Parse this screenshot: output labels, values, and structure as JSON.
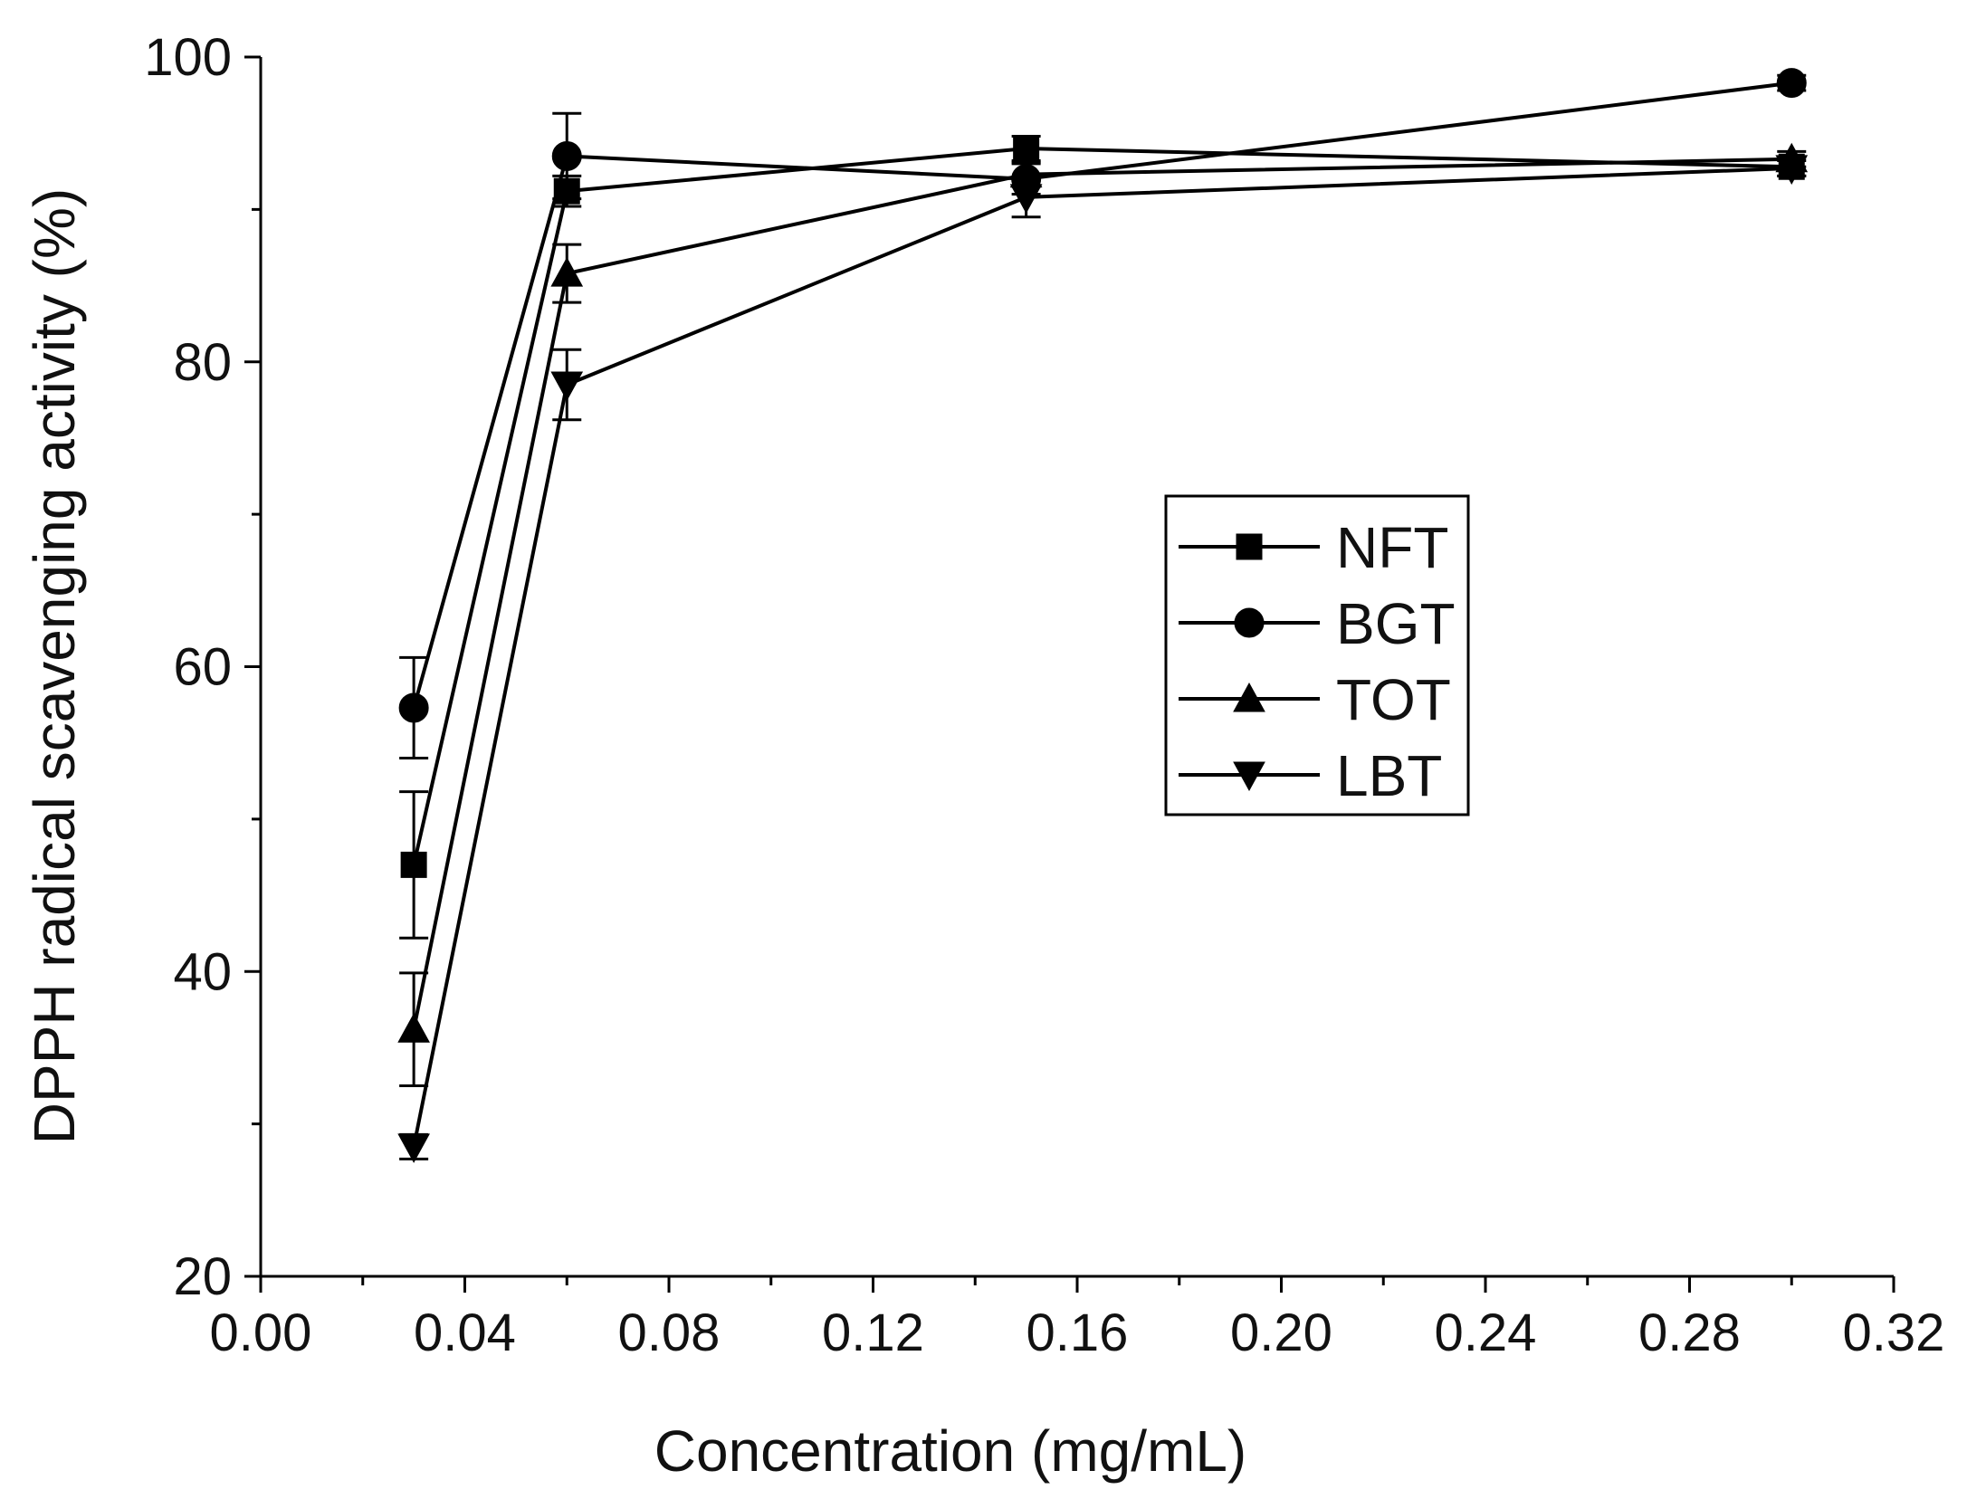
{
  "chart_data": {
    "type": "line",
    "title": "",
    "xlabel": "Concentration (mg/mL)",
    "ylabel": "DPPH radical scavenging activity (%)",
    "xlim": [
      0.0,
      0.32
    ],
    "ylim": [
      20,
      100
    ],
    "x_major_ticks": [
      0.0,
      0.04,
      0.08,
      0.12,
      0.16,
      0.2,
      0.24,
      0.28,
      0.32
    ],
    "x_tick_labels": [
      "0.00",
      "0.04",
      "0.08",
      "0.12",
      "0.16",
      "0.20",
      "0.24",
      "0.28",
      "0.32"
    ],
    "x_minor_ticks": [
      0.02,
      0.06,
      0.1,
      0.14,
      0.18,
      0.22,
      0.26,
      0.3
    ],
    "y_major_ticks": [
      20,
      40,
      60,
      80,
      100
    ],
    "y_tick_labels": [
      "20",
      "40",
      "60",
      "80",
      "100"
    ],
    "y_minor_ticks": [
      30,
      50,
      70,
      90
    ],
    "grid": false,
    "legend_position": "center-right",
    "x": [
      0.03,
      0.06,
      0.15,
      0.3
    ],
    "series": [
      {
        "name": "NFT",
        "marker": "square",
        "values": [
          47.0,
          91.2,
          94.0,
          92.8
        ],
        "errors": [
          4.8,
          1.0,
          0.8,
          0.6
        ]
      },
      {
        "name": "BGT",
        "marker": "circle",
        "values": [
          57.3,
          93.5,
          92.0,
          98.3
        ],
        "errors": [
          3.3,
          2.8,
          1.0,
          0.5
        ]
      },
      {
        "name": "TOT",
        "marker": "triangle-up",
        "values": [
          36.2,
          85.8,
          92.3,
          93.3
        ],
        "errors": [
          3.7,
          1.9,
          0.8,
          0.5
        ]
      },
      {
        "name": "LBT",
        "marker": "triangle-down",
        "values": [
          28.5,
          78.5,
          90.8,
          92.7
        ],
        "errors": [
          0.8,
          2.3,
          1.3,
          0.5
        ]
      }
    ]
  }
}
